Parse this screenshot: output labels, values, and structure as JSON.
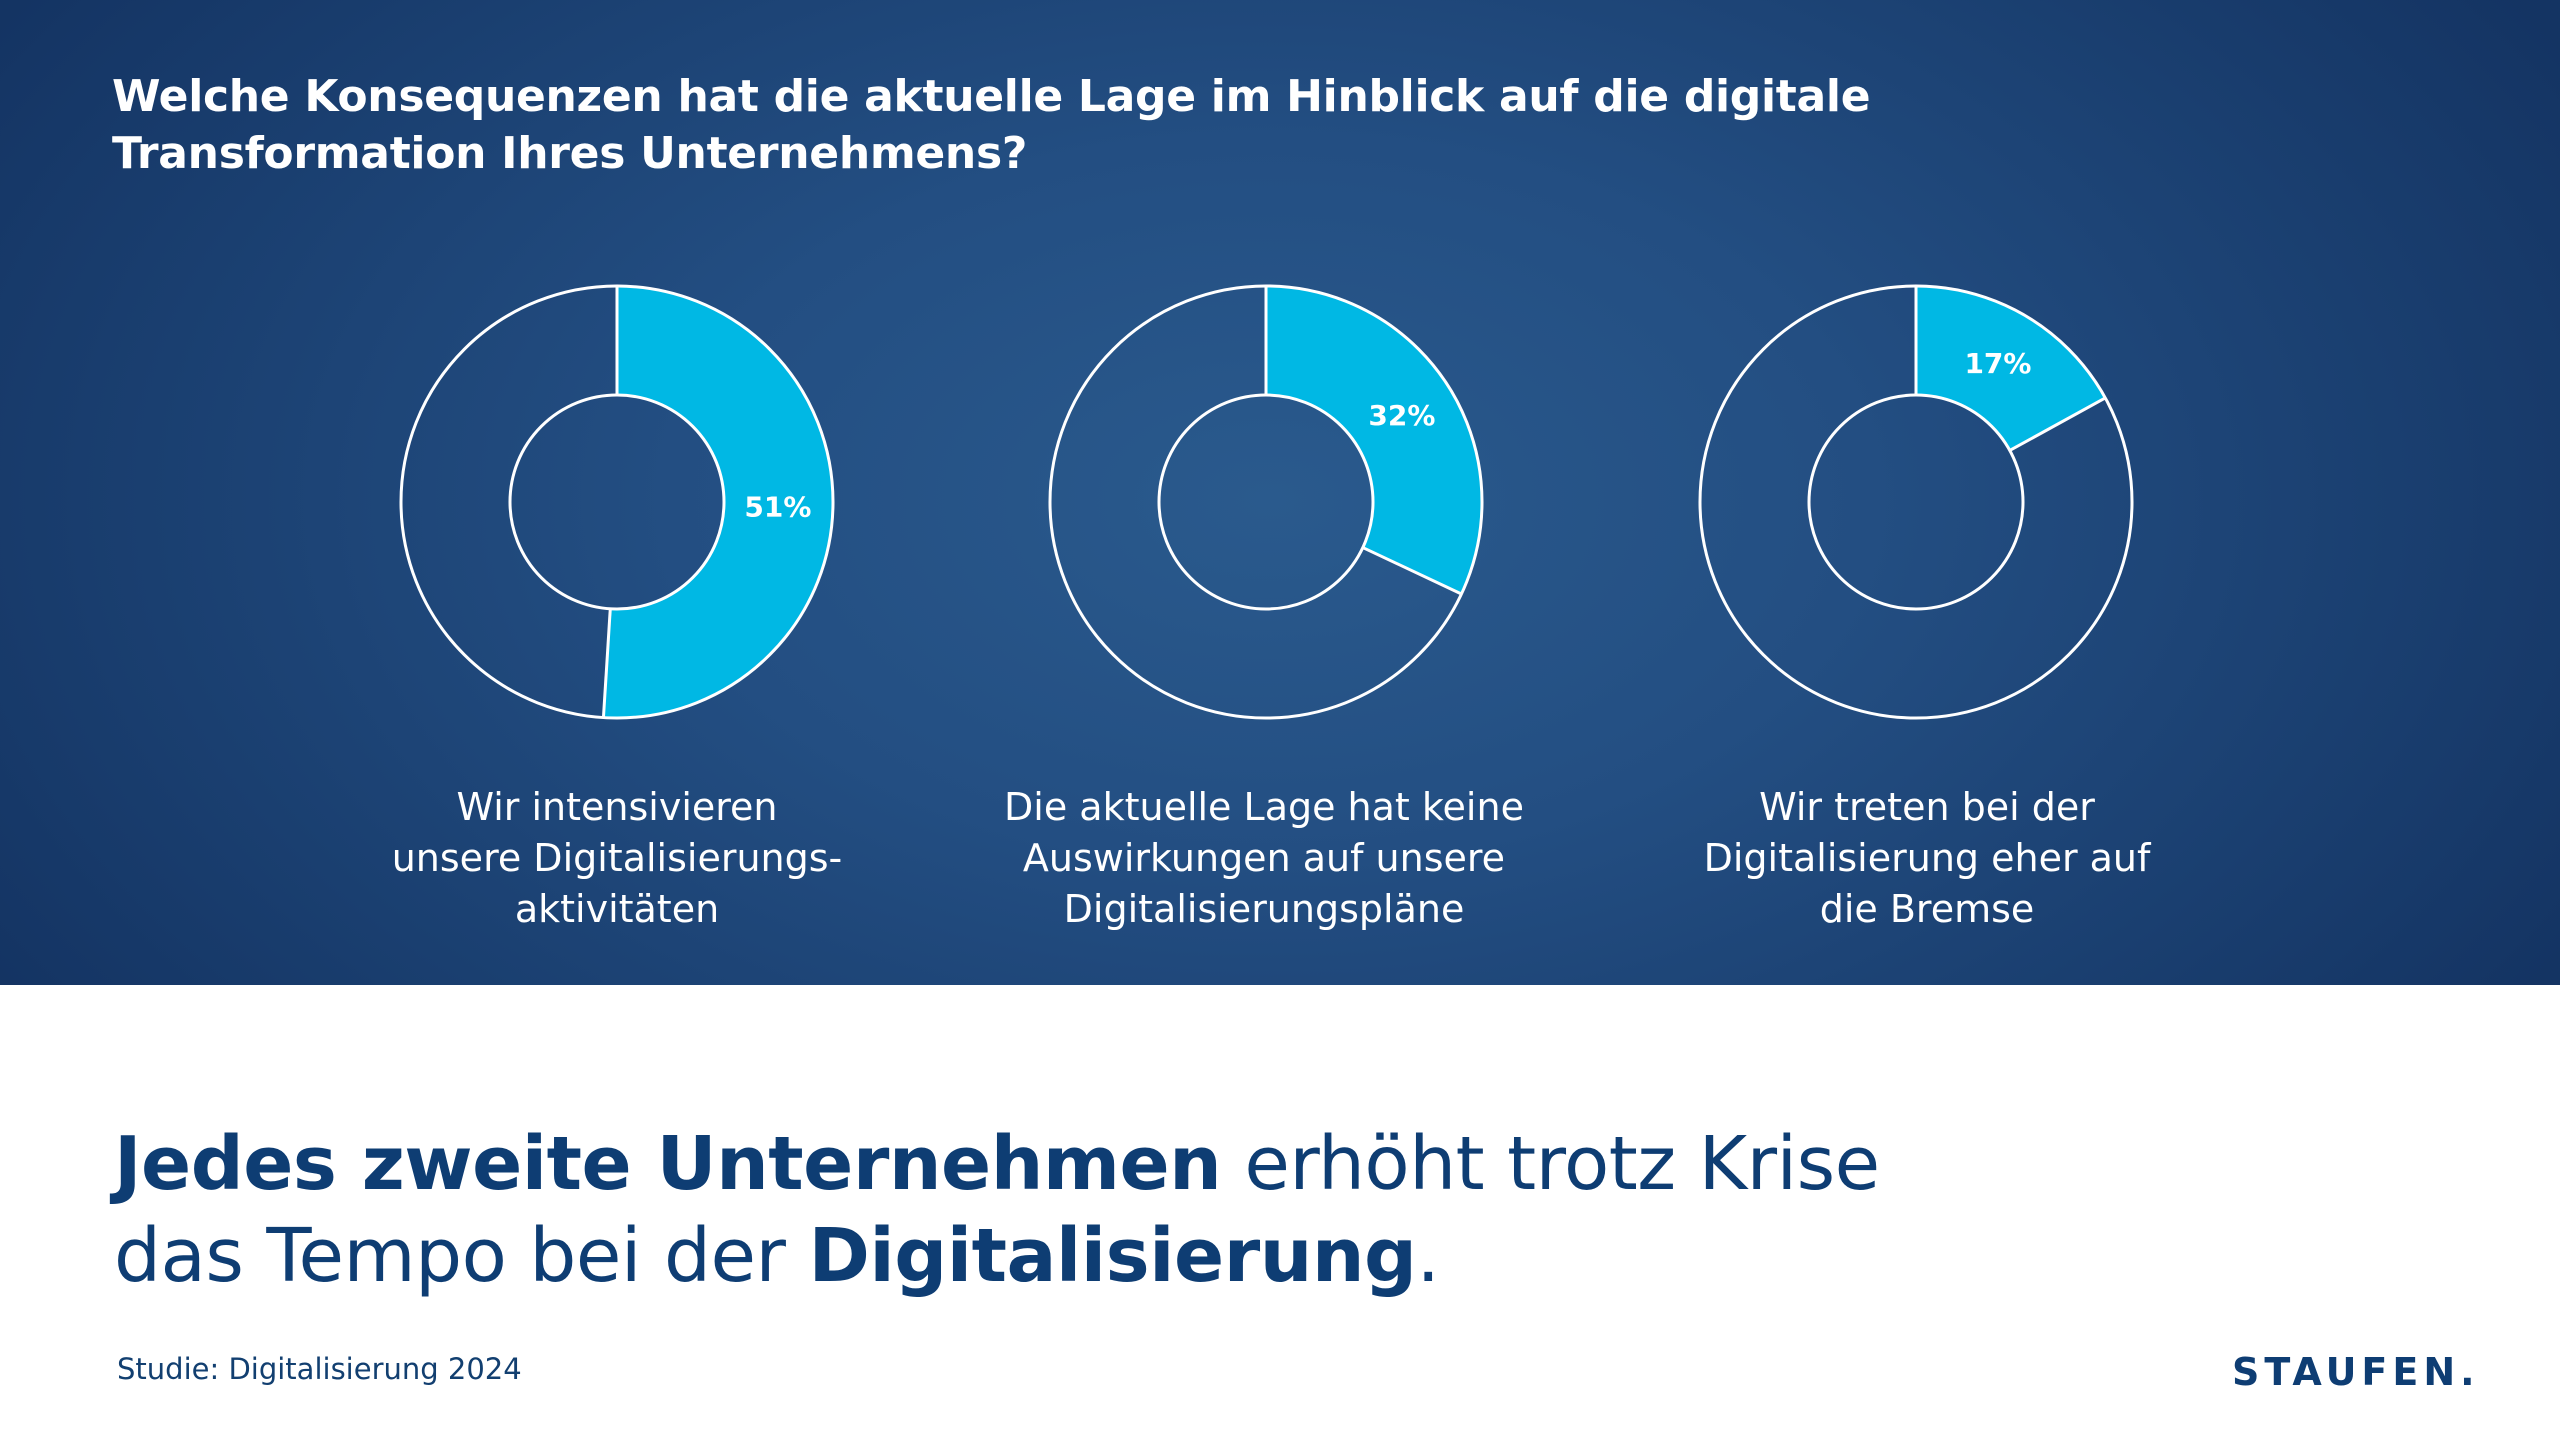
{
  "question": {
    "line1": "Welche Konsequenzen hat die aktuelle Lage im Hinblick auf die digitale",
    "line2": "Transformation Ihres Unternehmens?"
  },
  "colors": {
    "accent": "#00b8e4",
    "ring_stroke": "#ffffff",
    "headline": "#0e3d73"
  },
  "chart_data": {
    "type": "pie",
    "title": "Welche Konsequenzen hat die aktuelle Lage im Hinblick auf die digitale Transformation Ihres Unternehmens?",
    "variant": "donut",
    "series": [
      {
        "name": "Wir intensivieren unsere Digitalisierungsaktivitäten",
        "value": 51,
        "label": "51%",
        "caption_lines": [
          "Wir intensivieren",
          "unsere Digitalisierungs-",
          "aktivitäten"
        ]
      },
      {
        "name": "Die aktuelle Lage hat keine Auswirkungen auf unsere Digitalisierungspläne",
        "value": 32,
        "label": "32%",
        "caption_lines": [
          "Die aktuelle Lage hat keine",
          "Auswirkungen auf unsere",
          "Digitalisierungspläne"
        ]
      },
      {
        "name": "Wir treten bei der Digitalisierung eher auf die Bremse",
        "value": 17,
        "label": "17%",
        "caption_lines": [
          "Wir treten bei der",
          "Digitalisierung eher auf",
          "die Bremse"
        ]
      }
    ],
    "unit": "%",
    "max": 100
  },
  "headline": {
    "line1_bold": "Jedes zweite Unternehmen",
    "line1_regular": " erhöht trotz Krise",
    "line2_regular": "das Tempo bei der ",
    "line2_bold": "Digitalisierung",
    "line2_end": "."
  },
  "footer": {
    "source": "Studie: Digitalisierung 2024",
    "logo": "STAUFEN."
  }
}
